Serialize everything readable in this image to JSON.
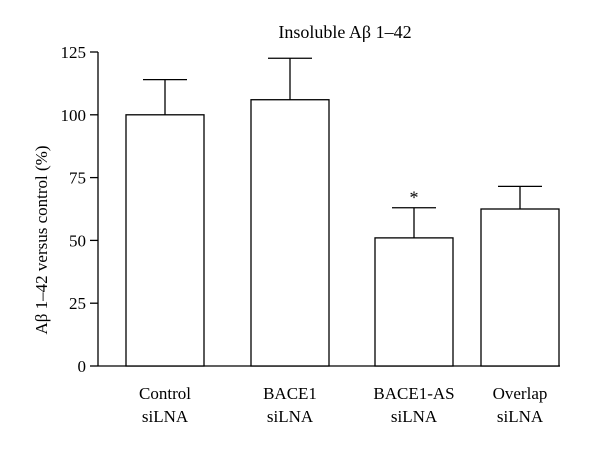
{
  "chart_data": {
    "type": "bar",
    "title": "Insoluble Aβ 1–42",
    "xlabel": "",
    "ylabel": "Aβ 1–42 versus control (%)",
    "categories": [
      [
        "Control",
        "siLNA"
      ],
      [
        "BACE1",
        "siLNA"
      ],
      [
        "BACE1-AS",
        "siLNA"
      ],
      [
        "Overlap",
        "siLNA"
      ]
    ],
    "values": [
      100,
      106,
      51,
      62.5
    ],
    "error_upper": [
      14,
      16.5,
      12,
      9
    ],
    "annotations": [
      "",
      "",
      "*",
      ""
    ],
    "ylim": [
      0,
      125
    ],
    "yticks": [
      0,
      25,
      50,
      75,
      100,
      125
    ],
    "grid": false,
    "bar_fill": "#ffffff",
    "bar_stroke": "#000000"
  }
}
